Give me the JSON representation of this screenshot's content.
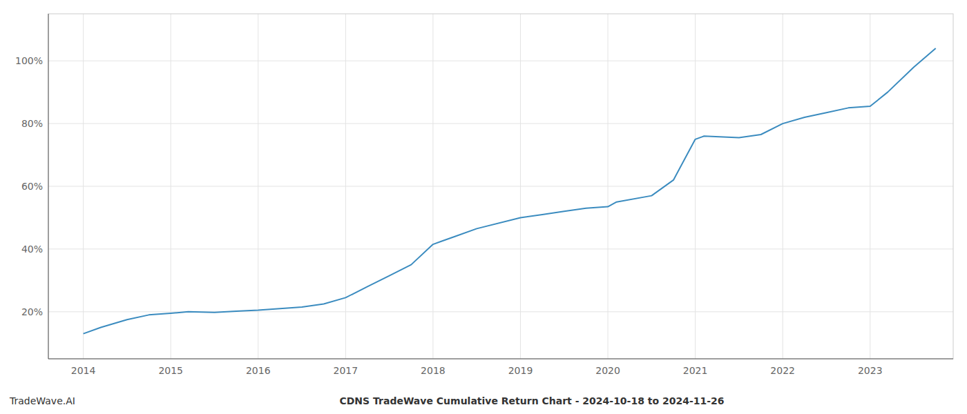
{
  "chart_data": {
    "type": "line",
    "title": "CDNS TradeWave Cumulative Return Chart - 2024-10-18 to 2024-11-26",
    "annotations": [
      "TradeWave.AI"
    ],
    "x": [
      2014.0,
      2014.2,
      2014.5,
      2014.75,
      2015.0,
      2015.2,
      2015.5,
      2015.75,
      2016.0,
      2016.25,
      2016.5,
      2016.75,
      2017.0,
      2017.25,
      2017.5,
      2017.75,
      2018.0,
      2018.1,
      2018.25,
      2018.5,
      2019.0,
      2019.25,
      2019.5,
      2019.75,
      2020.0,
      2020.1,
      2020.5,
      2020.75,
      2021.0,
      2021.1,
      2021.5,
      2021.75,
      2022.0,
      2022.25,
      2022.5,
      2022.75,
      2023.0,
      2023.2,
      2023.5,
      2023.75
    ],
    "values": [
      13.0,
      15.0,
      17.5,
      19.0,
      19.5,
      20.0,
      19.8,
      20.2,
      20.5,
      21.0,
      21.5,
      22.5,
      24.5,
      28.0,
      31.5,
      35.0,
      41.5,
      42.5,
      44.0,
      46.5,
      50.0,
      51.0,
      52.0,
      53.0,
      53.5,
      55.0,
      57.0,
      62.0,
      75.0,
      76.0,
      75.5,
      76.5,
      80.0,
      82.0,
      83.5,
      85.0,
      85.5,
      90.0,
      98.0,
      104.0
    ],
    "color": "#3a8bbf",
    "xlim": [
      2013.6,
      2023.95
    ],
    "ylim": [
      5,
      115
    ],
    "xticks": [
      2014,
      2015,
      2016,
      2017,
      2018,
      2019,
      2020,
      2021,
      2022,
      2023
    ],
    "yticks": [
      {
        "value": 20,
        "label": "20%"
      },
      {
        "value": 40,
        "label": "40%"
      },
      {
        "value": 60,
        "label": "60%"
      },
      {
        "value": 80,
        "label": "80%"
      },
      {
        "value": 100,
        "label": "100%"
      }
    ],
    "grid": true
  }
}
